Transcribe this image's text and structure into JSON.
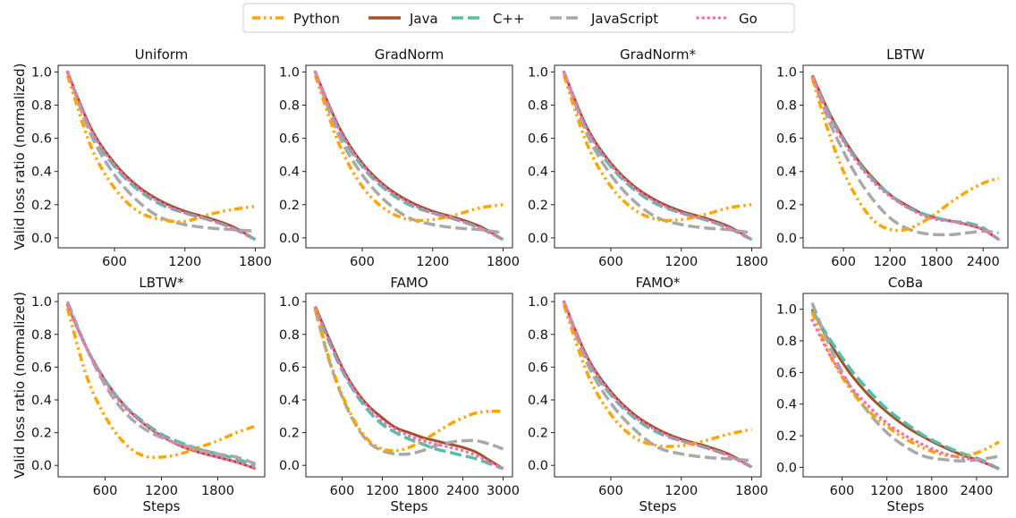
{
  "chart_data": {
    "type": "line",
    "grid": false,
    "legend": {
      "placement": "top-center",
      "entries": [
        {
          "name": "Python",
          "color": "#FFA500",
          "style": "dash-dot-dot"
        },
        {
          "name": "Java",
          "color": "#A0522D",
          "style": "solid"
        },
        {
          "name": "C++",
          "color": "#55BFA6",
          "style": "dashed"
        },
        {
          "name": "JavaScript",
          "color": "#A9A9A9",
          "style": "dashed"
        },
        {
          "name": "Go",
          "color": "#FF69B4",
          "style": "dotted"
        }
      ]
    },
    "ylabel": "Valid loss ratio (normalized)",
    "xlabel": "Steps",
    "panels": [
      {
        "title": "Uniform",
        "xlim": [
          120,
          1880
        ],
        "ylim": [
          -0.06,
          1.04
        ],
        "xticks": [
          600,
          1200,
          1800
        ],
        "yticks": [
          0.0,
          0.2,
          0.4,
          0.6,
          0.8,
          1.0
        ],
        "x": [
          200,
          400,
          600,
          800,
          1000,
          1200,
          1400,
          1600,
          1800
        ],
        "series": {
          "Python": [
            0.98,
            0.55,
            0.3,
            0.16,
            0.11,
            0.1,
            0.14,
            0.17,
            0.19
          ],
          "Java": [
            1.0,
            0.66,
            0.45,
            0.31,
            0.22,
            0.16,
            0.12,
            0.07,
            -0.01
          ],
          "C++": [
            1.0,
            0.64,
            0.43,
            0.29,
            0.2,
            0.15,
            0.11,
            0.06,
            -0.01
          ],
          "JavaScript": [
            1.0,
            0.62,
            0.38,
            0.22,
            0.12,
            0.08,
            0.06,
            0.05,
            0.04
          ],
          "Go": [
            1.0,
            0.65,
            0.44,
            0.3,
            0.21,
            0.15,
            0.11,
            0.06,
            -0.01
          ]
        }
      },
      {
        "title": "GradNorm",
        "xlim": [
          120,
          1880
        ],
        "ylim": [
          -0.06,
          1.04
        ],
        "xticks": [
          600,
          1200,
          1800
        ],
        "yticks": [
          0.0,
          0.2,
          0.4,
          0.6,
          0.8,
          1.0
        ],
        "x": [
          200,
          400,
          600,
          800,
          1000,
          1200,
          1400,
          1600,
          1800
        ],
        "series": {
          "Python": [
            0.98,
            0.57,
            0.31,
            0.17,
            0.11,
            0.11,
            0.14,
            0.18,
            0.2
          ],
          "Java": [
            1.0,
            0.67,
            0.45,
            0.31,
            0.22,
            0.16,
            0.12,
            0.07,
            -0.01
          ],
          "C++": [
            1.0,
            0.65,
            0.43,
            0.29,
            0.2,
            0.15,
            0.11,
            0.06,
            -0.01
          ],
          "JavaScript": [
            1.0,
            0.62,
            0.38,
            0.22,
            0.12,
            0.08,
            0.06,
            0.05,
            0.03
          ],
          "Go": [
            1.0,
            0.66,
            0.44,
            0.3,
            0.21,
            0.15,
            0.11,
            0.06,
            -0.01
          ]
        }
      },
      {
        "title": "GradNorm*",
        "xlim": [
          120,
          1880
        ],
        "ylim": [
          -0.06,
          1.04
        ],
        "xticks": [
          600,
          1200,
          1800
        ],
        "yticks": [
          0.0,
          0.2,
          0.4,
          0.6,
          0.8,
          1.0
        ],
        "x": [
          200,
          400,
          600,
          800,
          1000,
          1200,
          1400,
          1600,
          1800
        ],
        "series": {
          "Python": [
            0.98,
            0.56,
            0.31,
            0.17,
            0.11,
            0.11,
            0.14,
            0.18,
            0.2
          ],
          "Java": [
            1.0,
            0.66,
            0.45,
            0.31,
            0.22,
            0.16,
            0.12,
            0.07,
            -0.01
          ],
          "C++": [
            1.0,
            0.64,
            0.43,
            0.29,
            0.2,
            0.15,
            0.11,
            0.06,
            -0.01
          ],
          "JavaScript": [
            1.0,
            0.62,
            0.38,
            0.22,
            0.12,
            0.08,
            0.06,
            0.05,
            0.03
          ],
          "Go": [
            1.0,
            0.65,
            0.44,
            0.3,
            0.21,
            0.15,
            0.11,
            0.06,
            -0.01
          ]
        }
      },
      {
        "title": "LBTW",
        "xlim": [
          80,
          2720
        ],
        "ylim": [
          -0.06,
          1.04
        ],
        "xticks": [
          600,
          1200,
          1800,
          2400
        ],
        "yticks": [
          0.0,
          0.2,
          0.4,
          0.6,
          0.8,
          1.0
        ],
        "x": [
          200,
          400,
          600,
          800,
          1000,
          1200,
          1400,
          1600,
          1800,
          2000,
          2200,
          2400,
          2600
        ],
        "series": {
          "Python": [
            0.96,
            0.65,
            0.4,
            0.22,
            0.1,
            0.05,
            0.05,
            0.09,
            0.15,
            0.22,
            0.28,
            0.33,
            0.36
          ],
          "Java": [
            0.98,
            0.77,
            0.6,
            0.46,
            0.35,
            0.26,
            0.2,
            0.15,
            0.12,
            0.1,
            0.08,
            0.05,
            -0.01
          ],
          "C++": [
            0.97,
            0.76,
            0.59,
            0.45,
            0.34,
            0.26,
            0.19,
            0.15,
            0.12,
            0.1,
            0.09,
            0.06,
            -0.01
          ],
          "JavaScript": [
            0.97,
            0.72,
            0.52,
            0.35,
            0.22,
            0.12,
            0.06,
            0.03,
            0.02,
            0.02,
            0.03,
            0.04,
            0.03
          ],
          "Go": [
            0.97,
            0.75,
            0.58,
            0.44,
            0.33,
            0.25,
            0.19,
            0.14,
            0.11,
            0.1,
            0.08,
            0.05,
            -0.01
          ]
        }
      },
      {
        "title": "LBTW*",
        "xlim": [
          100,
          2300
        ],
        "ylim": [
          -0.07,
          1.05
        ],
        "xticks": [
          600,
          1200,
          1800
        ],
        "yticks": [
          0.0,
          0.2,
          0.4,
          0.6,
          0.8,
          1.0
        ],
        "x": [
          200,
          400,
          600,
          800,
          1000,
          1200,
          1400,
          1600,
          1800,
          2000,
          2200
        ],
        "series": {
          "Python": [
            0.96,
            0.55,
            0.3,
            0.14,
            0.06,
            0.05,
            0.07,
            0.11,
            0.15,
            0.2,
            0.24
          ],
          "Java": [
            0.98,
            0.72,
            0.52,
            0.37,
            0.26,
            0.18,
            0.12,
            0.08,
            0.05,
            0.02,
            -0.02
          ],
          "C++": [
            0.98,
            0.72,
            0.52,
            0.37,
            0.27,
            0.19,
            0.14,
            0.1,
            0.07,
            0.04,
            0.0
          ],
          "JavaScript": [
            1.0,
            0.72,
            0.49,
            0.33,
            0.23,
            0.17,
            0.13,
            0.1,
            0.07,
            0.05,
            0.01
          ],
          "Go": [
            0.98,
            0.72,
            0.51,
            0.36,
            0.26,
            0.18,
            0.12,
            0.08,
            0.05,
            0.02,
            -0.02
          ]
        }
      },
      {
        "title": "FAMO",
        "xlim": [
          60,
          3140
        ],
        "ylim": [
          -0.07,
          1.05
        ],
        "xticks": [
          600,
          1200,
          1800,
          2400,
          3000
        ],
        "yticks": [
          0.0,
          0.2,
          0.4,
          0.6,
          0.8,
          1.0
        ],
        "x": [
          200,
          400,
          600,
          800,
          1000,
          1200,
          1400,
          1600,
          1800,
          2000,
          2200,
          2400,
          2600,
          2800,
          3000
        ],
        "series": {
          "Python": [
            0.96,
            0.66,
            0.43,
            0.26,
            0.15,
            0.1,
            0.09,
            0.11,
            0.15,
            0.2,
            0.25,
            0.29,
            0.32,
            0.33,
            0.33
          ],
          "Java": [
            0.97,
            0.78,
            0.6,
            0.46,
            0.36,
            0.29,
            0.23,
            0.2,
            0.17,
            0.15,
            0.13,
            0.11,
            0.08,
            0.03,
            -0.02
          ],
          "C++": [
            0.96,
            0.76,
            0.58,
            0.44,
            0.33,
            0.25,
            0.2,
            0.16,
            0.13,
            0.1,
            0.08,
            0.06,
            0.04,
            0.01,
            -0.02
          ],
          "JavaScript": [
            0.95,
            0.65,
            0.42,
            0.25,
            0.14,
            0.09,
            0.07,
            0.07,
            0.09,
            0.12,
            0.14,
            0.15,
            0.15,
            0.13,
            0.1
          ],
          "Go": [
            0.96,
            0.77,
            0.59,
            0.45,
            0.35,
            0.27,
            0.22,
            0.18,
            0.15,
            0.13,
            0.11,
            0.09,
            0.06,
            0.02,
            -0.02
          ]
        }
      },
      {
        "title": "FAMO*",
        "xlim": [
          120,
          1880
        ],
        "ylim": [
          -0.07,
          1.05
        ],
        "xticks": [
          600,
          1200,
          1800
        ],
        "yticks": [
          0.0,
          0.2,
          0.4,
          0.6,
          0.8,
          1.0
        ],
        "x": [
          200,
          400,
          600,
          800,
          1000,
          1200,
          1400,
          1600,
          1800
        ],
        "series": {
          "Python": [
            0.98,
            0.56,
            0.31,
            0.17,
            0.12,
            0.12,
            0.15,
            0.19,
            0.22
          ],
          "Java": [
            1.0,
            0.66,
            0.45,
            0.31,
            0.22,
            0.16,
            0.12,
            0.07,
            -0.01
          ],
          "C++": [
            1.0,
            0.64,
            0.43,
            0.29,
            0.2,
            0.15,
            0.11,
            0.06,
            -0.01
          ],
          "JavaScript": [
            1.0,
            0.62,
            0.38,
            0.22,
            0.11,
            0.07,
            0.05,
            0.04,
            0.03
          ],
          "Go": [
            1.0,
            0.65,
            0.44,
            0.3,
            0.21,
            0.15,
            0.11,
            0.06,
            -0.01
          ]
        }
      },
      {
        "title": "CoBa",
        "xlim": [
          80,
          2820
        ],
        "ylim": [
          -0.06,
          1.1
        ],
        "xticks": [
          600,
          1200,
          1800,
          2400
        ],
        "yticks": [
          0.0,
          0.2,
          0.4,
          0.6,
          0.8,
          1.0
        ],
        "x": [
          200,
          450,
          700,
          950,
          1200,
          1450,
          1700,
          1950,
          2200,
          2450,
          2700
        ],
        "series": {
          "Python": [
            0.98,
            0.7,
            0.5,
            0.36,
            0.26,
            0.18,
            0.12,
            0.08,
            0.07,
            0.1,
            0.16
          ],
          "Java": [
            1.0,
            0.78,
            0.6,
            0.46,
            0.35,
            0.26,
            0.19,
            0.13,
            0.08,
            0.04,
            -0.01
          ],
          "C++": [
            0.99,
            0.8,
            0.63,
            0.49,
            0.37,
            0.28,
            0.2,
            0.14,
            0.09,
            0.05,
            -0.01
          ],
          "JavaScript": [
            1.04,
            0.75,
            0.52,
            0.35,
            0.22,
            0.13,
            0.07,
            0.05,
            0.04,
            0.05,
            0.07
          ],
          "Go": [
            0.93,
            0.7,
            0.52,
            0.39,
            0.28,
            0.2,
            0.14,
            0.09,
            0.06,
            0.04,
            -0.01
          ]
        }
      }
    ]
  }
}
